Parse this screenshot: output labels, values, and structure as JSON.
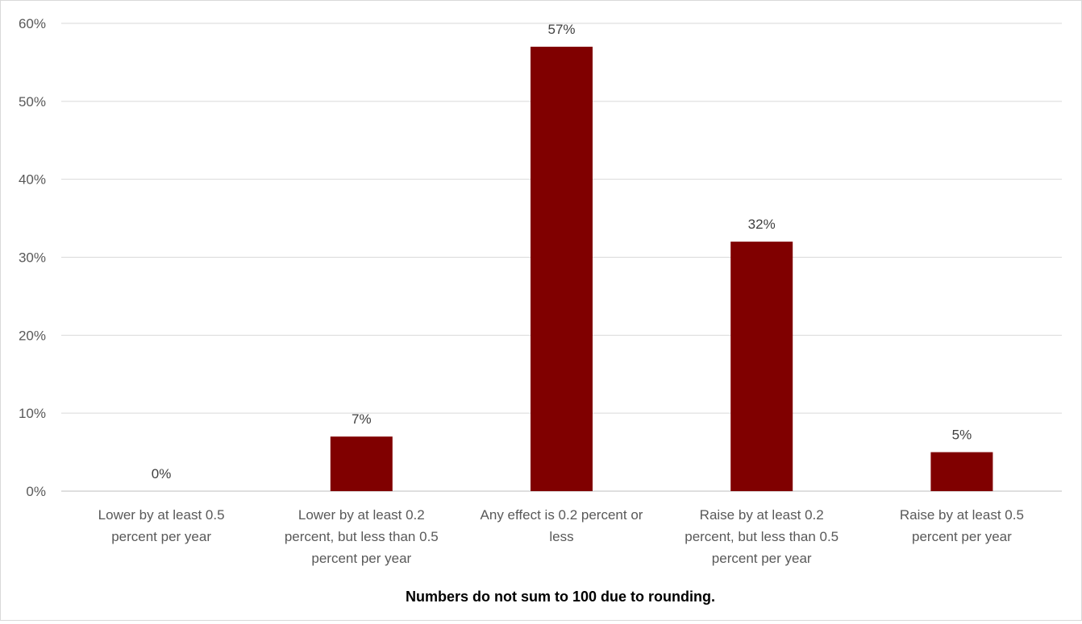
{
  "chart_data": {
    "type": "bar",
    "categories": [
      [
        "Lower by at least 0.5",
        "percent per year"
      ],
      [
        "Lower by at least 0.2",
        "percent, but less than 0.5",
        "percent per year"
      ],
      [
        "Any effect is 0.2 percent or",
        "less"
      ],
      [
        "Raise by at least 0.2",
        "percent, but less than 0.5",
        "percent per year"
      ],
      [
        "Raise by at least 0.5",
        "percent per year"
      ]
    ],
    "values": [
      0,
      7,
      57,
      32,
      5
    ],
    "value_labels": [
      "0%",
      "7%",
      "57%",
      "32%",
      "5%"
    ],
    "ylim": [
      0,
      60
    ],
    "yticks": [
      0,
      10,
      20,
      30,
      40,
      50,
      60
    ],
    "ytick_labels": [
      "0%",
      "10%",
      "20%",
      "30%",
      "40%",
      "50%",
      "60%"
    ],
    "grid": true,
    "legend": "none",
    "bar_color": "#800000",
    "footnote": "Numbers do not sum to 100 due to rounding."
  }
}
